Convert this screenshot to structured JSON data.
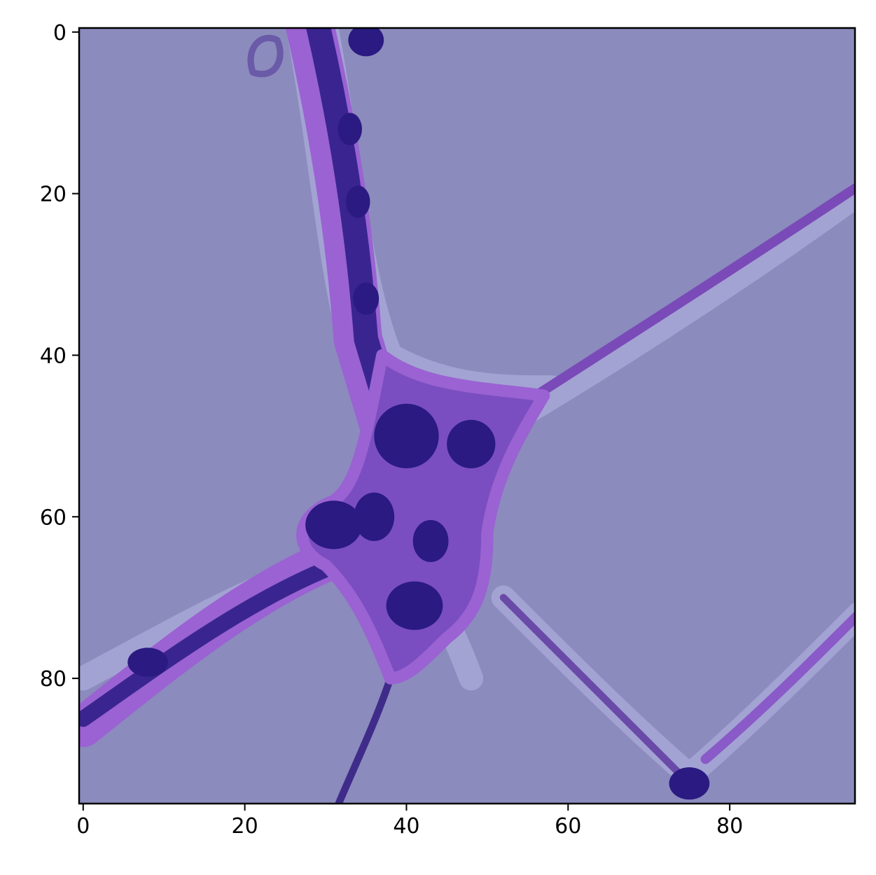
{
  "chart_data": {
    "type": "image",
    "xlim": [
      -0.5,
      95.5
    ],
    "ylim": [
      95.5,
      -0.5
    ],
    "xticks": [
      0,
      20,
      40,
      60,
      80
    ],
    "yticks": [
      0,
      20,
      40,
      60,
      80
    ]
  }
}
